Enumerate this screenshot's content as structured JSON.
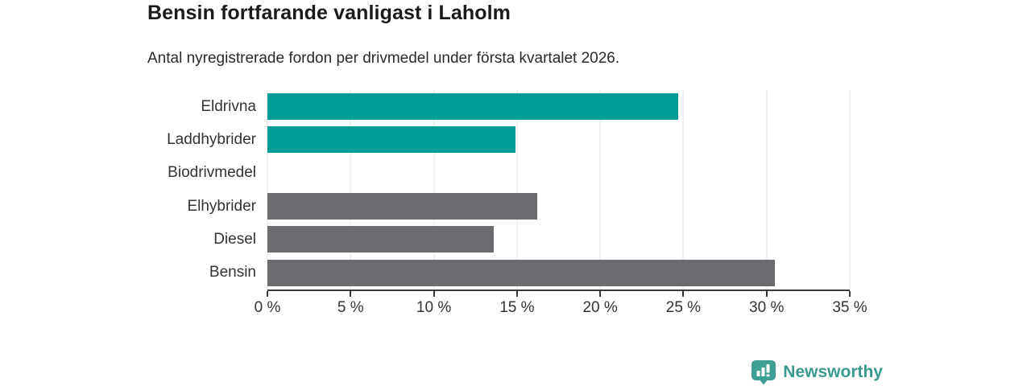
{
  "header": {
    "title": "Bensin fortfarande vanligast i Laholm",
    "subtitle": "Antal nyregistrerade fordon per drivmedel under första kvartalet 2026."
  },
  "chart_data": {
    "type": "bar",
    "orientation": "horizontal",
    "title": "Bensin fortfarande vanligast i Laholm",
    "subtitle": "Antal nyregistrerade fordon per drivmedel under första kvartalet 2026.",
    "categories": [
      "Eldrivna",
      "Laddhybrider",
      "Biodrivmedel",
      "Elhybrider",
      "Diesel",
      "Bensin"
    ],
    "values": [
      24.7,
      14.9,
      0,
      16.2,
      13.6,
      30.5
    ],
    "unit": "%",
    "xlabel": "",
    "ylabel": "",
    "xlim": [
      0,
      35
    ],
    "x_tick_values": [
      0,
      5,
      10,
      15,
      20,
      25,
      30,
      35
    ],
    "x_tick_labels": [
      "0 %",
      "5 %",
      "10 %",
      "15 %",
      "20 %",
      "25 %",
      "30 %",
      "35 %"
    ],
    "grid": true,
    "legend": false,
    "bar_colors": [
      "#009e96",
      "#009e96",
      "#6a6a6f",
      "#6a6a6f",
      "#6a6a6f",
      "#6a6a6f"
    ],
    "accent_color": "#009e96",
    "neutral_color": "#6a6a6f"
  },
  "footer": {
    "brand": "Newsworthy",
    "brand_color": "#3b9a8f",
    "logo_icon": "bar-chart-badge-icon"
  }
}
